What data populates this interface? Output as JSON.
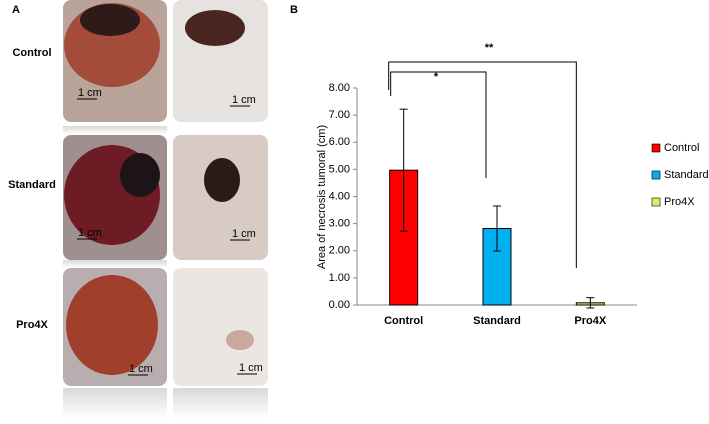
{
  "panel_a": {
    "label": "A",
    "rows": [
      "Control",
      "Standard",
      "Pro4X"
    ],
    "scale_label": "1 cm"
  },
  "chart_data": {
    "type": "bar",
    "panel_label": "B",
    "ylabel": "Area of necrosis tumoral (cm)",
    "categories": [
      "Control",
      "Standard",
      "Pro4X"
    ],
    "values": [
      4.97,
      2.82,
      0.08
    ],
    "errors": [
      2.25,
      0.83,
      0.19
    ],
    "colors": [
      "#ff0000",
      "#00b0f0",
      "#d4f56a"
    ],
    "ylim": [
      0,
      8
    ],
    "yticks": [
      {
        "value": 0,
        "label": "0.00"
      },
      {
        "value": 1,
        "label": "1.00"
      },
      {
        "value": 2,
        "label": "2.00"
      },
      {
        "value": 3,
        "label": "3.00"
      },
      {
        "value": 4,
        "label": "4.00"
      },
      {
        "value": 5,
        "label": "5.00"
      },
      {
        "value": 6,
        "label": "6.00"
      },
      {
        "value": 7,
        "label": "7.00"
      },
      {
        "value": 8,
        "label": "8.00"
      }
    ],
    "legend": "right",
    "annotations": [
      "*",
      "**"
    ]
  }
}
